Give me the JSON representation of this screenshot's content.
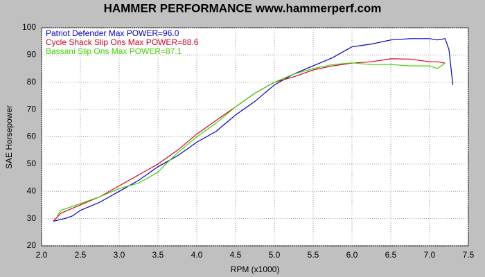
{
  "chart_data": {
    "type": "line",
    "title": "HAMMER PERFORMANCE www.hammerperf.com",
    "x_label": "RPM (x1000)",
    "y_label": "SAE Horsepower",
    "xlim": [
      2,
      7.5
    ],
    "xticks": [
      {
        "value": 2,
        "label": "2.0"
      },
      2.5,
      {
        "value": 3,
        "label": "3.0"
      },
      3.5,
      {
        "value": 4,
        "label": "4.0"
      },
      4.5,
      {
        "value": 5,
        "label": "5.0"
      },
      5.5,
      {
        "value": 6,
        "label": "6.0"
      },
      6.5,
      {
        "value": 7,
        "label": "7.0"
      },
      7.5
    ],
    "ylim": [
      20,
      100
    ],
    "yticks": [
      20,
      30,
      40,
      50,
      60,
      70,
      80,
      90,
      100
    ],
    "grid": true,
    "series": [
      {
        "name": "Patriot Defender  Max POWER=96.0",
        "color": "#0000c0",
        "x": [
          2.15,
          2.3,
          2.4,
          2.5,
          2.75,
          3.0,
          3.25,
          3.5,
          3.75,
          4.0,
          4.25,
          4.5,
          4.75,
          5.0,
          5.25,
          5.5,
          5.75,
          6.0,
          6.25,
          6.5,
          6.75,
          7.0,
          7.1,
          7.2,
          7.25,
          7.3
        ],
        "values": [
          29,
          30,
          31,
          33,
          36,
          40,
          44,
          49,
          53,
          58,
          62,
          68,
          73,
          79,
          83,
          86,
          89,
          93,
          94,
          95.5,
          96,
          96,
          95.5,
          96,
          92,
          79
        ]
      },
      {
        "name": "Cycle Shack Slip Ons  Max POWER=88.6",
        "color": "#d00020",
        "x": [
          2.15,
          2.25,
          2.5,
          2.75,
          3.0,
          3.25,
          3.5,
          3.75,
          4.0,
          4.25,
          4.5,
          4.75,
          5.0,
          5.25,
          5.5,
          5.75,
          6.0,
          6.25,
          6.5,
          6.75,
          7.0,
          7.1,
          7.2
        ],
        "values": [
          29,
          32,
          35,
          38,
          42,
          46,
          50,
          55,
          61,
          66,
          71,
          76,
          80,
          82,
          84.5,
          86,
          87,
          87.5,
          88.6,
          88.5,
          87.5,
          87.5,
          87
        ]
      },
      {
        "name": "Bassani Slip Ons  Max POWER=87.1",
        "color": "#40d000",
        "x": [
          2.2,
          2.25,
          2.5,
          2.75,
          3.0,
          3.25,
          3.5,
          3.6,
          3.75,
          4.0,
          4.25,
          4.5,
          4.75,
          5.0,
          5.25,
          5.5,
          5.75,
          6.0,
          6.25,
          6.5,
          6.75,
          7.0,
          7.1,
          7.2
        ],
        "values": [
          31,
          33,
          35.5,
          38,
          41,
          43,
          47,
          50,
          54,
          60,
          65,
          71,
          76,
          80,
          83,
          85,
          86.5,
          87.1,
          86.5,
          86.5,
          86,
          86,
          85,
          87
        ]
      }
    ]
  }
}
